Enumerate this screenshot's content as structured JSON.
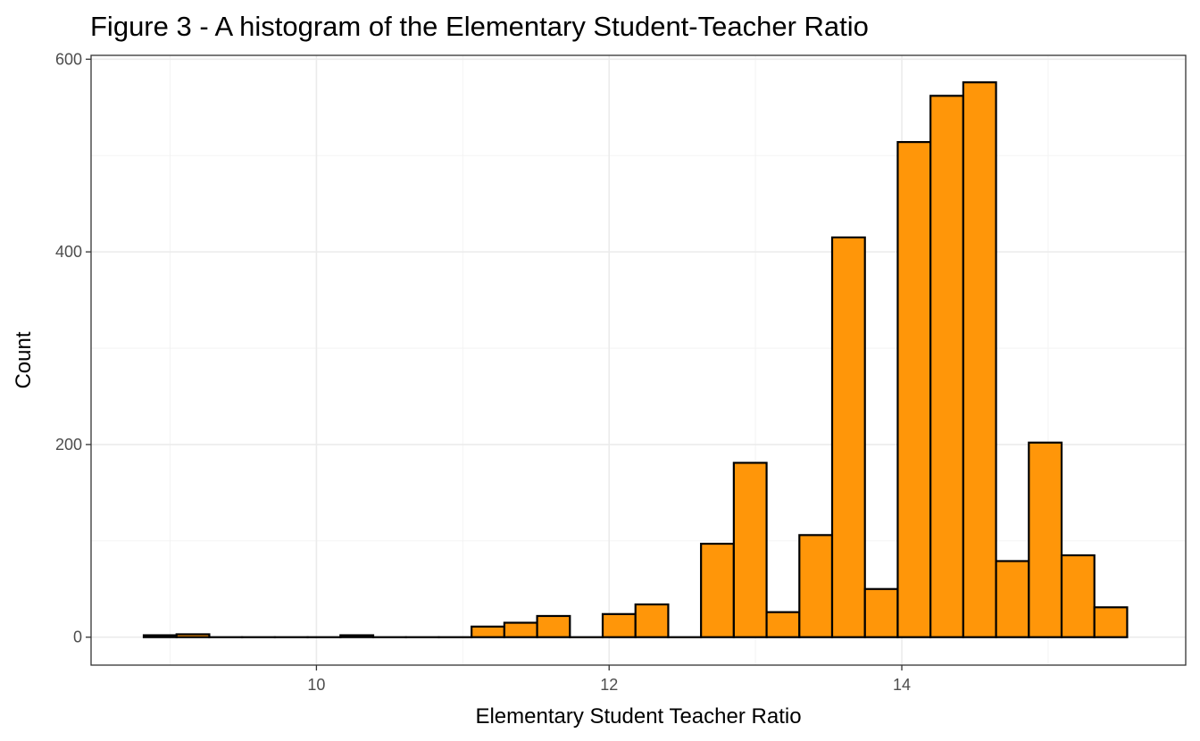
{
  "chart_data": {
    "type": "bar",
    "title": "Figure 3 - A histogram of the Elementary Student-Teacher Ratio",
    "xlabel": "Elementary Student Teacher Ratio",
    "ylabel": "Count",
    "xlim": [
      8.46,
      15.94
    ],
    "ylim": [
      -29,
      604
    ],
    "x_ticks": [
      10,
      12,
      14
    ],
    "x_tick_labels": [
      "10",
      "12",
      "14"
    ],
    "y_ticks": [
      0,
      200,
      400,
      600
    ],
    "y_tick_labels": [
      "0",
      "200",
      "400",
      "600"
    ],
    "bin_width": 0.224,
    "bin_start": 8.82,
    "values": [
      2,
      3,
      0,
      0,
      0,
      0,
      2,
      0,
      0,
      0,
      11,
      15,
      22,
      0,
      24,
      34,
      0,
      97,
      181,
      26,
      106,
      415,
      50,
      514,
      562,
      576,
      79,
      202,
      85,
      31
    ],
    "bar_color": "#ff9609",
    "bar_border_color": "#000000",
    "grid": true,
    "legend": "none"
  }
}
